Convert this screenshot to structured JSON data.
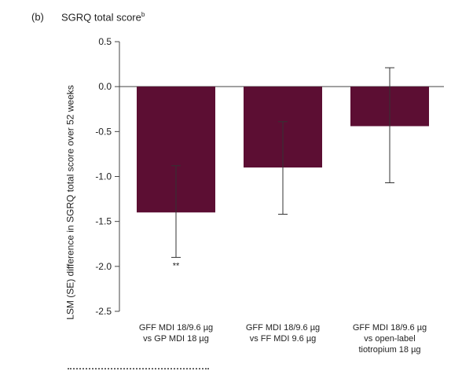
{
  "panel_label": "(b)",
  "chart_data": {
    "type": "bar",
    "title": "SGRQ total score",
    "title_superscript": "b",
    "ylabel": "LSM (SE) difference in SGRQ total score over 52 weeks",
    "ylim": [
      -2.5,
      0.5
    ],
    "yticks": [
      "0.5",
      "0.0",
      "-0.5",
      "-1.0",
      "-1.5",
      "-2.0",
      "-2.5"
    ],
    "categories": [
      [
        "GFF MDI 18/9.6 µg",
        "vs GP MDI 18 µg"
      ],
      [
        "GFF MDI 18/9.6 µg",
        "vs FF MDI 9.6 µg"
      ],
      [
        "GFF MDI 18/9.6 µg",
        "vs open-label",
        "tiotropium 18 µg"
      ]
    ],
    "series": [
      {
        "values": [
          -1.4,
          -0.9,
          -0.44
        ],
        "error_low": [
          -1.9,
          -1.42,
          -1.07
        ],
        "error_high": [
          -0.88,
          -0.39,
          0.21
        ]
      }
    ],
    "annotations": [
      "**",
      "",
      ""
    ],
    "bar_color": "#5c0e33"
  }
}
